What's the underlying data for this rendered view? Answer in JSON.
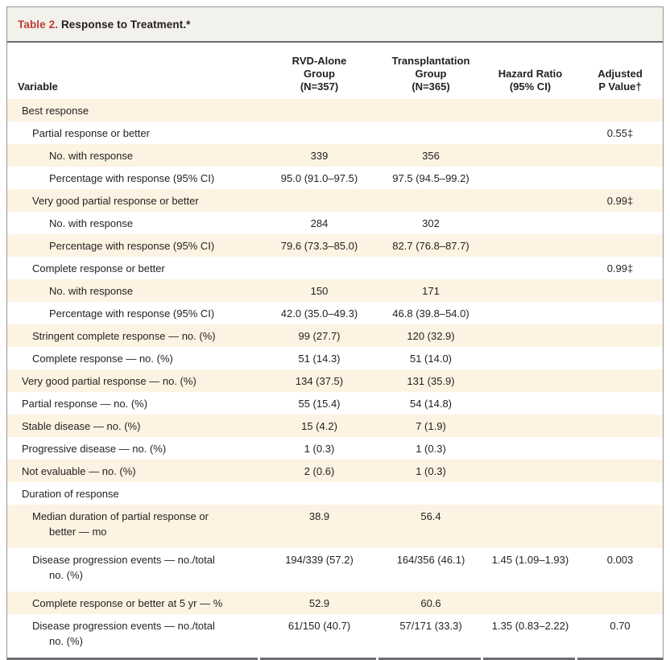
{
  "title": {
    "label": "Table 2.",
    "text": "Response to Treatment.*"
  },
  "columns": [
    "Variable",
    "RVD-Alone\nGroup\n(N=357)",
    "Transplantation\nGroup\n(N=365)",
    "Hazard Ratio\n(95% CI)",
    "Adjusted\nP Value†"
  ],
  "rows": [
    {
      "label": "Best response",
      "indent": 0,
      "rvd": "",
      "transplant": "",
      "hazard": "",
      "p": ""
    },
    {
      "label": "Partial response or better",
      "indent": 1,
      "rvd": "",
      "transplant": "",
      "hazard": "",
      "p": "0.55‡"
    },
    {
      "label": "No. with response",
      "indent": 2,
      "rvd": "339",
      "transplant": "356",
      "hazard": "",
      "p": ""
    },
    {
      "label": "Percentage with response (95% CI)",
      "indent": 2,
      "rvd": "95.0 (91.0–97.5)",
      "transplant": "97.5 (94.5–99.2)",
      "hazard": "",
      "p": ""
    },
    {
      "label": "Very good partial response or better",
      "indent": 1,
      "rvd": "",
      "transplant": "",
      "hazard": "",
      "p": "0.99‡"
    },
    {
      "label": "No. with response",
      "indent": 2,
      "rvd": "284",
      "transplant": "302",
      "hazard": "",
      "p": ""
    },
    {
      "label": "Percentage with response (95% CI)",
      "indent": 2,
      "rvd": "79.6 (73.3–85.0)",
      "transplant": "82.7 (76.8–87.7)",
      "hazard": "",
      "p": ""
    },
    {
      "label": "Complete response or better",
      "indent": 1,
      "rvd": "",
      "transplant": "",
      "hazard": "",
      "p": "0.99‡"
    },
    {
      "label": "No. with response",
      "indent": 2,
      "rvd": "150",
      "transplant": "171",
      "hazard": "",
      "p": ""
    },
    {
      "label": "Percentage with response (95% CI)",
      "indent": 2,
      "rvd": "42.0 (35.0–49.3)",
      "transplant": "46.8 (39.8–54.0)",
      "hazard": "",
      "p": ""
    },
    {
      "label": "Stringent complete response — no. (%)",
      "indent": 1,
      "rvd": "99 (27.7)",
      "transplant": "120 (32.9)",
      "hazard": "",
      "p": ""
    },
    {
      "label": "Complete response — no. (%)",
      "indent": 1,
      "rvd": "51 (14.3)",
      "transplant": "51 (14.0)",
      "hazard": "",
      "p": ""
    },
    {
      "label": "Very good partial response — no. (%)",
      "indent": 0,
      "rvd": "134 (37.5)",
      "transplant": "131 (35.9)",
      "hazard": "",
      "p": ""
    },
    {
      "label": "Partial response — no. (%)",
      "indent": 0,
      "rvd": "55 (15.4)",
      "transplant": "54 (14.8)",
      "hazard": "",
      "p": ""
    },
    {
      "label": "Stable disease — no. (%)",
      "indent": 0,
      "rvd": "15 (4.2)",
      "transplant": "7 (1.9)",
      "hazard": "",
      "p": ""
    },
    {
      "label": "Progressive disease — no. (%)",
      "indent": 0,
      "rvd": "1 (0.3)",
      "transplant": "1 (0.3)",
      "hazard": "",
      "p": ""
    },
    {
      "label": "Not evaluable — no. (%)",
      "indent": 0,
      "rvd": "2 (0.6)",
      "transplant": "1 (0.3)",
      "hazard": "",
      "p": ""
    },
    {
      "label": "Duration of response",
      "indent": 0,
      "rvd": "",
      "transplant": "",
      "hazard": "",
      "p": ""
    },
    {
      "label": "Median duration of partial response or\nbetter — mo",
      "indent": 1,
      "wrap": true,
      "rvd": "38.9",
      "transplant": "56.4",
      "hazard": "",
      "p": ""
    },
    {
      "label": "Disease progression events — no./total\nno. (%)",
      "indent": 1,
      "wrap": true,
      "rvd": "194/339 (57.2)",
      "transplant": "164/356 (46.1)",
      "hazard": "1.45 (1.09–1.93)",
      "p": "0.003"
    },
    {
      "label": "Complete response or better at 5 yr — %",
      "indent": 1,
      "rvd": "52.9",
      "transplant": "60.6",
      "hazard": "",
      "p": ""
    },
    {
      "label": "Disease progression events — no./total\nno. (%)",
      "indent": 1,
      "wrap": true,
      "rvd": "61/150 (40.7)",
      "transplant": "57/171 (33.3)",
      "hazard": "1.35 (0.83–2.22)",
      "p": "0.70"
    }
  ],
  "colors": {
    "text": "#231f20",
    "table_label_red": "#c23b35",
    "row_shade_cream": "#fdf3e2",
    "title_bar_background": "#f2f1ec",
    "outer_border_gray": "#939598",
    "rule_gray": "#6d6e71"
  }
}
